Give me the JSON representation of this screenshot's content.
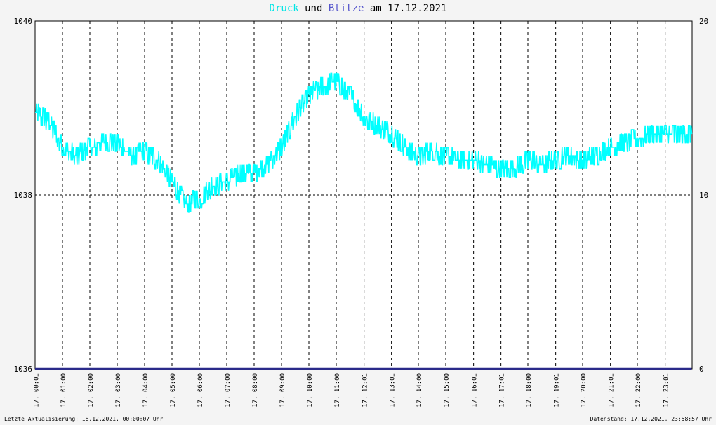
{
  "title": {
    "series1": "Druck",
    "joiner": "und",
    "series2": "Blitze",
    "prefix": "am",
    "date": "17.12.2021"
  },
  "colors": {
    "pressure": "#00ffff",
    "lightning": "#2a2a8a",
    "background": "#ffffff",
    "page": "#f4f4f4"
  },
  "footer": {
    "left": "Letzte Aktualisierung: 18.12.2021, 00:00:07 Uhr",
    "right": "Datenstand: 17.12.2021, 23:58:57 Uhr"
  },
  "chart_data": {
    "type": "line",
    "title": "Druck und Blitze am 17.12.2021",
    "grid": true,
    "y_left": {
      "range": [
        1036,
        1040
      ],
      "ticks": [
        1036,
        1038,
        1040
      ]
    },
    "y_right": {
      "range": [
        0,
        20
      ],
      "ticks": [
        0,
        10,
        20
      ]
    },
    "x_range": [
      "00:00",
      "24:00"
    ],
    "x_ticks": [
      {
        "t": "00:01",
        "label": "17. 00:01"
      },
      {
        "t": "01:00",
        "label": "17. 01:00"
      },
      {
        "t": "02:00",
        "label": "17. 02:00"
      },
      {
        "t": "03:00",
        "label": "17. 03:00"
      },
      {
        "t": "04:00",
        "label": "17. 04:00"
      },
      {
        "t": "05:00",
        "label": "17. 05:00"
      },
      {
        "t": "06:00",
        "label": "17. 06:00"
      },
      {
        "t": "07:00",
        "label": "17. 07:00"
      },
      {
        "t": "08:00",
        "label": "17. 08:00"
      },
      {
        "t": "09:00",
        "label": "17. 09:00"
      },
      {
        "t": "10:00",
        "label": "17. 10:00"
      },
      {
        "t": "11:00",
        "label": "17. 11:00"
      },
      {
        "t": "12:01",
        "label": "17. 12:01"
      },
      {
        "t": "13:01",
        "label": "17. 13:01"
      },
      {
        "t": "14:00",
        "label": "17. 14:00"
      },
      {
        "t": "15:00",
        "label": "17. 15:00"
      },
      {
        "t": "16:01",
        "label": "17. 16:01"
      },
      {
        "t": "17:01",
        "label": "17. 17:01"
      },
      {
        "t": "18:00",
        "label": "17. 18:00"
      },
      {
        "t": "19:01",
        "label": "17. 19:01"
      },
      {
        "t": "20:00",
        "label": "17. 20:00"
      },
      {
        "t": "21:01",
        "label": "17. 21:01"
      },
      {
        "t": "22:00",
        "label": "17. 22:00"
      },
      {
        "t": "23:01",
        "label": "17. 23:01"
      }
    ],
    "series": [
      {
        "name": "Druck",
        "axis": "left",
        "x": [
          "00:00",
          "00:30",
          "01:00",
          "01:30",
          "02:00",
          "02:30",
          "03:00",
          "03:30",
          "04:00",
          "04:30",
          "05:00",
          "05:30",
          "06:00",
          "06:30",
          "07:00",
          "07:30",
          "08:00",
          "08:30",
          "09:00",
          "09:30",
          "10:00",
          "10:30",
          "11:00",
          "11:30",
          "12:00",
          "12:30",
          "13:00",
          "13:30",
          "14:00",
          "14:30",
          "15:00",
          "15:30",
          "16:00",
          "16:30",
          "17:00",
          "17:30",
          "18:00",
          "18:30",
          "19:00",
          "19:30",
          "20:00",
          "20:30",
          "21:00",
          "21:30",
          "22:00",
          "22:30",
          "23:00",
          "23:30",
          "23:59"
        ],
        "values": [
          1038.95,
          1038.85,
          1038.55,
          1038.45,
          1038.55,
          1038.6,
          1038.6,
          1038.45,
          1038.5,
          1038.4,
          1038.15,
          1037.9,
          1037.95,
          1038.1,
          1038.15,
          1038.25,
          1038.25,
          1038.35,
          1038.55,
          1038.9,
          1039.15,
          1039.25,
          1039.3,
          1039.15,
          1038.9,
          1038.8,
          1038.7,
          1038.55,
          1038.45,
          1038.5,
          1038.45,
          1038.4,
          1038.4,
          1038.35,
          1038.3,
          1038.3,
          1038.4,
          1038.35,
          1038.4,
          1038.45,
          1038.4,
          1038.45,
          1038.55,
          1038.6,
          1038.65,
          1038.7,
          1038.7,
          1038.7,
          1038.7
        ]
      },
      {
        "name": "Blitze",
        "axis": "right",
        "x": [
          "00:00",
          "23:59"
        ],
        "values": [
          0,
          0
        ]
      }
    ]
  }
}
